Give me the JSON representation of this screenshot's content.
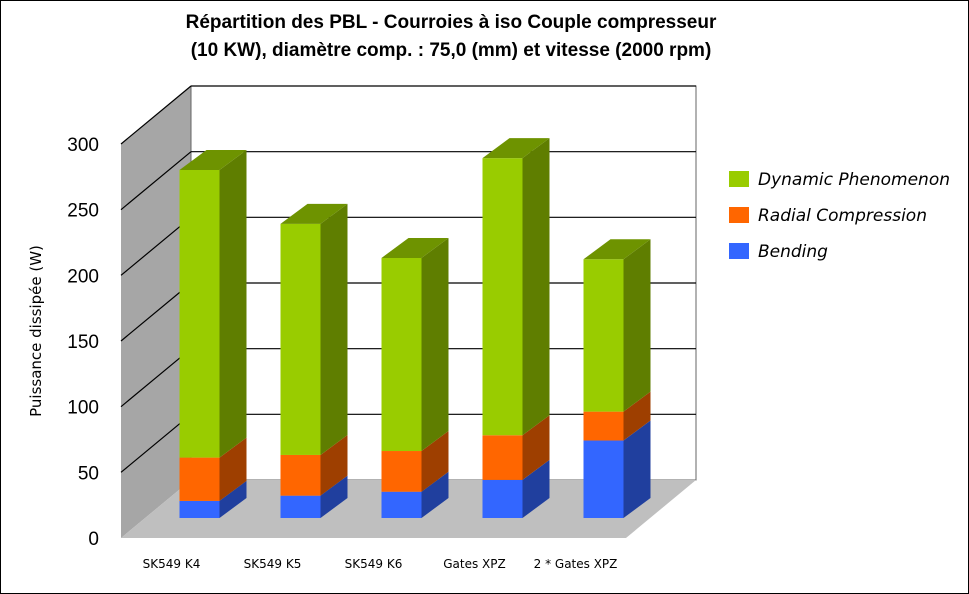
{
  "chart_data": {
    "type": "bar",
    "stacked": true,
    "three_d": true,
    "title_lines": [
      "Répartition des PBL - Courroies à iso Couple compresseur",
      "(10 KW), diamètre comp. : 75,0 (mm) et vitesse (2000 rpm)"
    ],
    "ylabel": "Puissance dissipée (W)",
    "xlabel": "",
    "ylim": [
      0,
      300
    ],
    "yticks": [
      0,
      50,
      100,
      150,
      200,
      250,
      300
    ],
    "grid": true,
    "legend_position": "right",
    "categories": [
      "SK549 K4",
      "SK549 K5",
      "SK549 K6",
      "Gates XPZ",
      "2 * Gates XPZ"
    ],
    "series": [
      {
        "name": "Bending",
        "color": "#3366ff",
        "values": [
          13,
          17,
          20,
          29,
          59
        ]
      },
      {
        "name": "Radial Compression",
        "color": "#ff6600",
        "values": [
          33,
          31,
          31,
          34,
          22
        ]
      },
      {
        "name": "Dynamic Phenomenon",
        "color": "#99cc00",
        "values": [
          219,
          176,
          147,
          211,
          116
        ]
      }
    ]
  }
}
